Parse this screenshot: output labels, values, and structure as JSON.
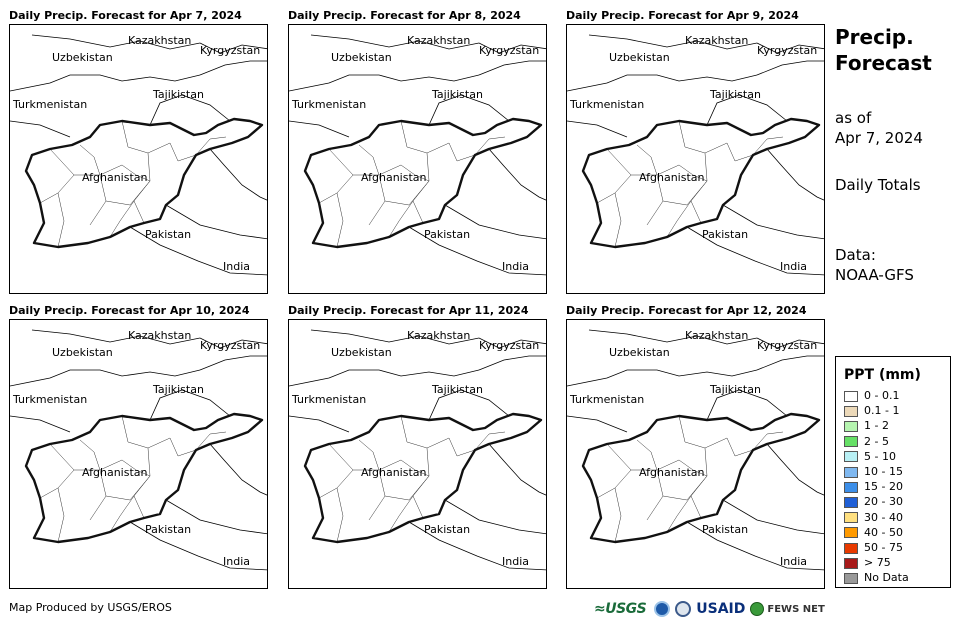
{
  "panels": [
    {
      "title": "Daily Precip. Forecast for Apr 7, 2024",
      "col": 0,
      "row": 0,
      "precip": []
    },
    {
      "title": "Daily Precip. Forecast for Apr 8, 2024",
      "col": 1,
      "row": 0,
      "precip": []
    },
    {
      "title": "Daily Precip. Forecast for Apr 9, 2024",
      "col": 2,
      "row": 0,
      "precip": []
    },
    {
      "title": "Daily Precip. Forecast for Apr 10, 2024",
      "col": 0,
      "row": 1,
      "precip": []
    },
    {
      "title": "Daily Precip. Forecast for Apr 11, 2024",
      "col": 1,
      "row": 1,
      "precip": []
    },
    {
      "title": "Daily Precip. Forecast for Apr 12, 2024",
      "col": 2,
      "row": 1,
      "precip": []
    }
  ],
  "map_labels": {
    "kazakhstan": "Kazakhstan",
    "kyrgyzstan": "Kyrgyzstan",
    "uzbekistan": "Uzbekistan",
    "tajikistan": "Tajikistan",
    "turkmenistan": "Turkmenistan",
    "afghanistan": "Afghanistan",
    "pakistan": "Pakistan",
    "india": "India"
  },
  "side": {
    "title_line1": "Precip.",
    "title_line2": "Forecast",
    "as_of_line1": "as of",
    "as_of_line2": "Apr 7, 2024",
    "daily_totals": "Daily Totals",
    "data_line1": "Data:",
    "data_line2": "NOAA-GFS"
  },
  "legend": {
    "title": "PPT (mm)",
    "items": [
      {
        "label": "0 - 0.1",
        "color": "#ffffff"
      },
      {
        "label": "0.1 - 1",
        "color": "#ecd9b9"
      },
      {
        "label": "1 - 2",
        "color": "#b6f5b0"
      },
      {
        "label": "2 - 5",
        "color": "#66e066"
      },
      {
        "label": "5 - 10",
        "color": "#b8f0f5"
      },
      {
        "label": "10 - 15",
        "color": "#7fb8f0"
      },
      {
        "label": "15 - 20",
        "color": "#3c8ee8"
      },
      {
        "label": "20 - 30",
        "color": "#1f5fd6"
      },
      {
        "label": "30 - 40",
        "color": "#ffe080"
      },
      {
        "label": "40 - 50",
        "color": "#ff9a00"
      },
      {
        "label": "50 - 75",
        "color": "#e83a00"
      },
      {
        "label": "> 75",
        "color": "#a81a1a"
      },
      {
        "label": "No Data",
        "color": "#999999"
      }
    ]
  },
  "footer": {
    "credit": "Map Produced by USGS/EROS",
    "usgs": "USGS",
    "usaid": "USAID",
    "fewsnet": "FEWS NET"
  }
}
